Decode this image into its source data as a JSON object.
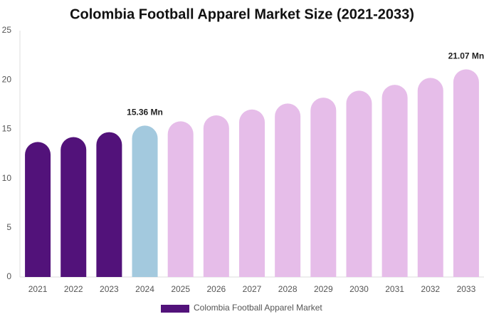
{
  "chart_data": {
    "type": "bar",
    "title": "Colombia Football Apparel Market Size (2021-2033)",
    "categories": [
      "2021",
      "2022",
      "2023",
      "2024",
      "2025",
      "2026",
      "2027",
      "2028",
      "2029",
      "2030",
      "2031",
      "2032",
      "2033"
    ],
    "series": [
      {
        "name": "Colombia Football Apparel Market",
        "color": "#52127a",
        "values": [
          13.7,
          14.2,
          14.7,
          15.36,
          15.8,
          16.4,
          17.0,
          17.6,
          18.2,
          18.9,
          19.5,
          20.2,
          21.07
        ],
        "colors": [
          "#52127a",
          "#52127a",
          "#52127a",
          "#a3c9de",
          "#e6bde9",
          "#e6bde9",
          "#e6bde9",
          "#e6bde9",
          "#e6bde9",
          "#e6bde9",
          "#e6bde9",
          "#e6bde9",
          "#e6bde9"
        ],
        "value_labels": [
          null,
          null,
          null,
          "15.36 Mn",
          null,
          null,
          null,
          null,
          null,
          null,
          null,
          null,
          "21.07 Mn"
        ]
      }
    ],
    "ylim": [
      0,
      25
    ],
    "yticks": [
      0,
      5,
      10,
      15,
      20,
      25
    ],
    "grid": false
  }
}
